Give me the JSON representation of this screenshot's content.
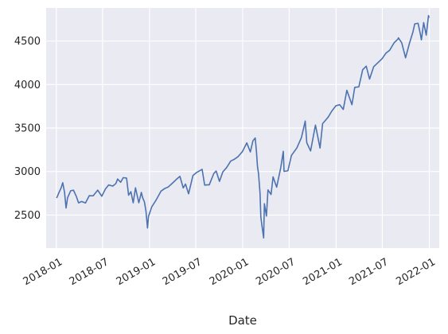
{
  "chart_data": {
    "type": "line",
    "title": "",
    "xlabel": "Date",
    "ylabel": "",
    "x_axis_type": "date",
    "xlim": [
      "2017-11-22",
      "2022-02-09"
    ],
    "ylim": [
      2120,
      4880
    ],
    "grid": true,
    "legend": "none",
    "colors": {
      "background": "#eaeaf2",
      "grid": "#ffffff",
      "line": "#4c72b0",
      "text": "#262626"
    },
    "x_ticks": [
      {
        "date": "2018-01-01",
        "label": "2018-01"
      },
      {
        "date": "2018-07-01",
        "label": "2018-07"
      },
      {
        "date": "2019-01-01",
        "label": "2019-01"
      },
      {
        "date": "2019-07-01",
        "label": "2019-07"
      },
      {
        "date": "2020-01-01",
        "label": "2020-01"
      },
      {
        "date": "2020-07-01",
        "label": "2020-07"
      },
      {
        "date": "2021-01-01",
        "label": "2021-01"
      },
      {
        "date": "2021-07-01",
        "label": "2021-07"
      },
      {
        "date": "2022-01-01",
        "label": "2022-01"
      }
    ],
    "y_ticks": [
      {
        "value": 2500,
        "label": "2500"
      },
      {
        "value": 3000,
        "label": "3000"
      },
      {
        "value": 3500,
        "label": "3500"
      },
      {
        "value": 4000,
        "label": "4000"
      },
      {
        "value": 4500,
        "label": "4500"
      }
    ],
    "series": [
      {
        "x": [
          "2018-01-02",
          "2018-01-10",
          "2018-01-20",
          "2018-01-26",
          "2018-02-02",
          "2018-02-08",
          "2018-02-14",
          "2018-02-26",
          "2018-03-09",
          "2018-03-20",
          "2018-03-29",
          "2018-04-10",
          "2018-04-25",
          "2018-05-10",
          "2018-05-25",
          "2018-06-12",
          "2018-06-28",
          "2018-07-12",
          "2018-07-25",
          "2018-08-10",
          "2018-08-22",
          "2018-08-29",
          "2018-09-10",
          "2018-09-20",
          "2018-10-03",
          "2018-10-11",
          "2018-10-20",
          "2018-10-29",
          "2018-11-07",
          "2018-11-20",
          "2018-11-30",
          "2018-12-05",
          "2018-12-12",
          "2018-12-18",
          "2018-12-24",
          "2018-12-28",
          "2019-01-10",
          "2019-01-25",
          "2019-02-15",
          "2019-03-01",
          "2019-03-15",
          "2019-04-01",
          "2019-04-15",
          "2019-04-30",
          "2019-05-13",
          "2019-05-22",
          "2019-06-03",
          "2019-06-20",
          "2019-07-05",
          "2019-07-26",
          "2019-08-05",
          "2019-08-15",
          "2019-08-23",
          "2019-09-10",
          "2019-09-19",
          "2019-10-02",
          "2019-10-15",
          "2019-10-30",
          "2019-11-15",
          "2019-11-29",
          "2019-12-13",
          "2019-12-31",
          "2020-01-17",
          "2020-01-31",
          "2020-02-10",
          "2020-02-19",
          "2020-02-24",
          "2020-02-28",
          "2020-03-03",
          "2020-03-09",
          "2020-03-12",
          "2020-03-16",
          "2020-03-20",
          "2020-03-23",
          "2020-03-26",
          "2020-04-03",
          "2020-04-09",
          "2020-04-21",
          "2020-04-29",
          "2020-05-13",
          "2020-05-29",
          "2020-06-08",
          "2020-06-11",
          "2020-06-26",
          "2020-07-10",
          "2020-07-31",
          "2020-08-18",
          "2020-09-02",
          "2020-09-08",
          "2020-09-23",
          "2020-10-12",
          "2020-10-30",
          "2020-11-09",
          "2020-11-30",
          "2020-12-15",
          "2020-12-31",
          "2021-01-15",
          "2021-01-29",
          "2021-02-12",
          "2021-03-04",
          "2021-03-15",
          "2021-03-31",
          "2021-04-15",
          "2021-04-29",
          "2021-05-12",
          "2021-05-28",
          "2021-06-15",
          "2021-06-30",
          "2021-07-15",
          "2021-07-30",
          "2021-08-16",
          "2021-08-31",
          "2021-09-02",
          "2021-09-15",
          "2021-09-30",
          "2021-10-15",
          "2021-10-29",
          "2021-11-05",
          "2021-11-18",
          "2021-11-26",
          "2021-12-01",
          "2021-12-10",
          "2021-12-20",
          "2021-12-29",
          "2021-12-31"
        ],
        "y": [
          2695,
          2750,
          2815,
          2872,
          2762,
          2581,
          2700,
          2779,
          2786,
          2716,
          2640,
          2656,
          2639,
          2723,
          2721,
          2786,
          2716,
          2798,
          2846,
          2833,
          2862,
          2914,
          2877,
          2930,
          2925,
          2728,
          2768,
          2641,
          2813,
          2641,
          2760,
          2700,
          2651,
          2546,
          2351,
          2485,
          2596,
          2664,
          2775,
          2804,
          2822,
          2867,
          2907,
          2945,
          2812,
          2856,
          2744,
          2954,
          2990,
          3025,
          2844,
          2847,
          2847,
          2979,
          3006,
          2887,
          2995,
          3046,
          3120,
          3141,
          3169,
          3230,
          3329,
          3225,
          3352,
          3386,
          3225,
          3054,
          2978,
          2746,
          2480,
          2386,
          2304,
          2237,
          2630,
          2488,
          2789,
          2736,
          2939,
          2820,
          3044,
          3232,
          3002,
          3009,
          3185,
          3271,
          3390,
          3580,
          3331,
          3237,
          3534,
          3270,
          3550,
          3622,
          3694,
          3756,
          3768,
          3714,
          3934,
          3768,
          3968,
          3973,
          4170,
          4211,
          4063,
          4204,
          4255,
          4297,
          4360,
          4395,
          4479,
          4522,
          4537,
          4480,
          4307,
          4471,
          4605,
          4697,
          4704,
          4594,
          4513,
          4712,
          4568,
          4793,
          4766
        ]
      }
    ]
  }
}
